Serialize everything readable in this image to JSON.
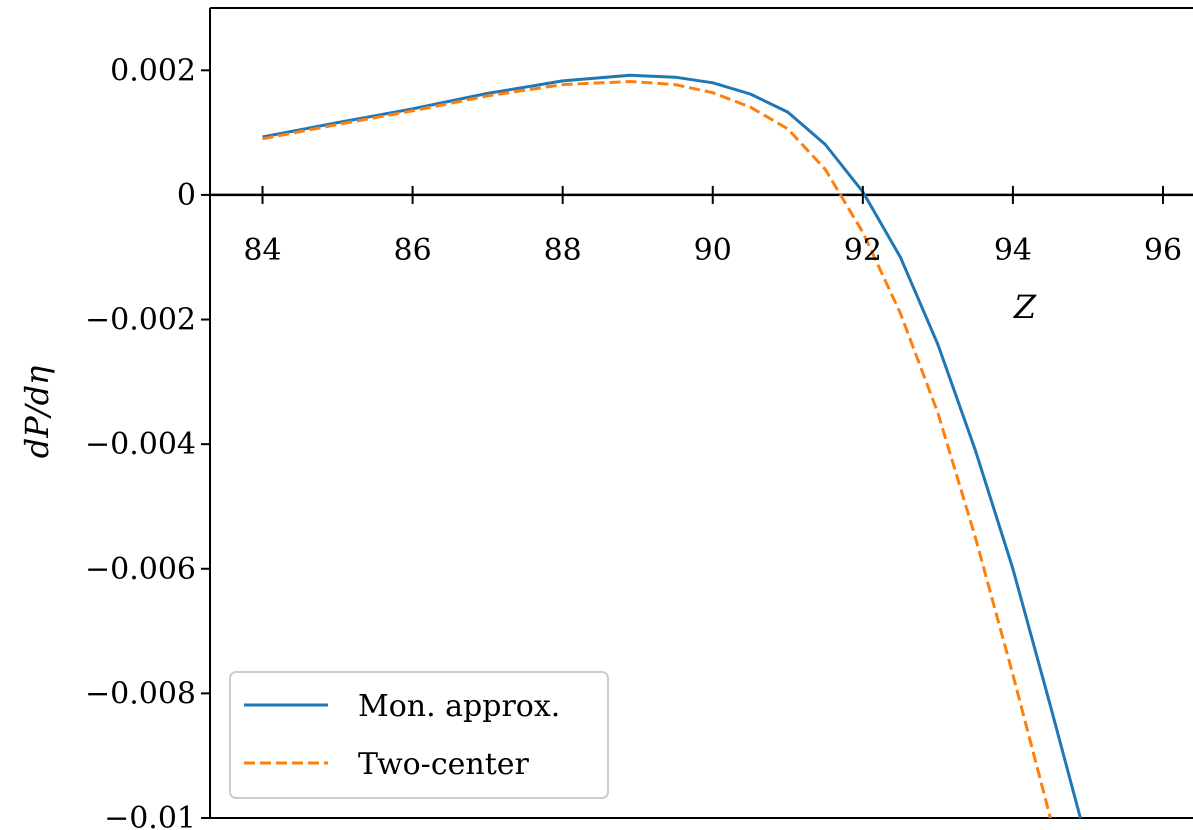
{
  "chart_data": {
    "type": "line",
    "xlabel": "Z",
    "ylabel": "dP/dη",
    "xlim": [
      83.3,
      96.4
    ],
    "ylim": [
      -0.01,
      0.003
    ],
    "xticks": [
      84,
      86,
      88,
      90,
      92,
      94,
      96
    ],
    "xtick_labels": [
      "84",
      "86",
      "88",
      "90",
      "92",
      "94",
      "96"
    ],
    "yticks": [
      0.002,
      0,
      -0.002,
      -0.004,
      -0.006,
      -0.008,
      -0.01
    ],
    "ytick_labels": [
      "0.002",
      "0",
      "−0.002",
      "−0.004",
      "−0.006",
      "−0.008",
      "−0.01"
    ],
    "grid": false,
    "legend_position": "lower-left",
    "series": [
      {
        "name": "Mon. approx.",
        "color": "#1f77b4",
        "style": "solid",
        "x": [
          84,
          85,
          86,
          87,
          88,
          88.9,
          89.5,
          90,
          90.5,
          91,
          91.5,
          92,
          92.5,
          93,
          93.5,
          94,
          94.5,
          94.9
        ],
        "y": [
          0.00093,
          0.00116,
          0.00138,
          0.00163,
          0.00183,
          0.00192,
          0.00189,
          0.0018,
          0.00162,
          0.00133,
          0.00081,
          5e-05,
          -0.001,
          -0.0024,
          -0.0041,
          -0.006,
          -0.0082,
          -0.01
        ]
      },
      {
        "name": "Two-center",
        "color": "#ff7f0e",
        "style": "dashed",
        "x": [
          84,
          85,
          86,
          87,
          88,
          88.9,
          89.5,
          90,
          90.5,
          91,
          91.5,
          92,
          92.5,
          93,
          93.5,
          94,
          94.5
        ],
        "y": [
          0.0009,
          0.00113,
          0.00135,
          0.00159,
          0.00177,
          0.00182,
          0.00177,
          0.00164,
          0.00141,
          0.00106,
          0.00041,
          -0.0006,
          -0.0019,
          -0.0035,
          -0.0055,
          -0.0077,
          -0.01
        ]
      }
    ]
  }
}
